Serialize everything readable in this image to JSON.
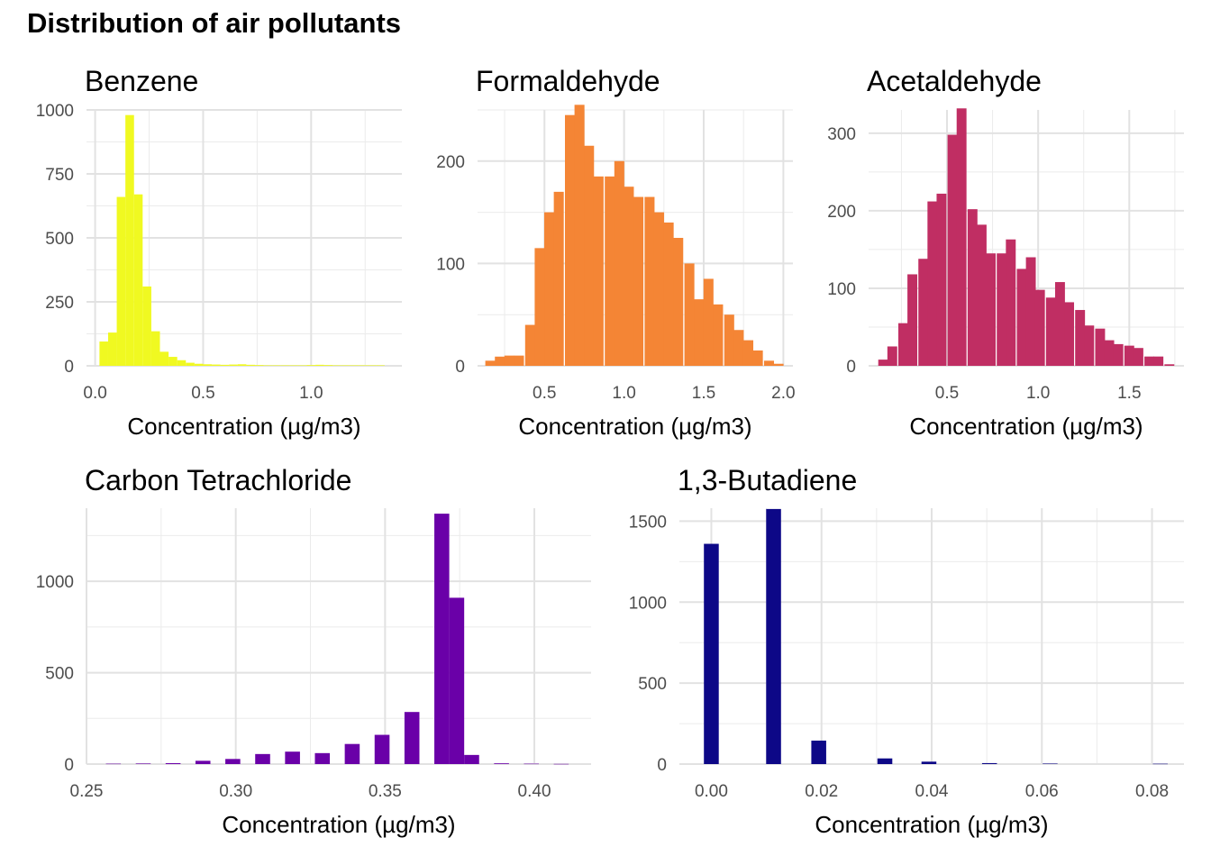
{
  "figure": {
    "title": "Distribution of air pollutants"
  },
  "chart_data": [
    {
      "type": "bar",
      "title": "Benzene",
      "xlabel": "Concentration (µg/m3)",
      "ylabel": "",
      "color": "#F0F921",
      "xlim": [
        -0.04,
        1.42
      ],
      "ylim": [
        0,
        1000
      ],
      "xticks": [
        0.0,
        0.5,
        1.0
      ],
      "xtick_labels": [
        "0.0",
        "0.5",
        "1.0"
      ],
      "yticks": [
        0,
        250,
        500,
        750,
        1000
      ],
      "yticks_minor": [
        125,
        375,
        625,
        875
      ],
      "xticks_minor": [
        0.25,
        0.75,
        1.25
      ],
      "bin_width": 0.04,
      "x": [
        0.04,
        0.08,
        0.12,
        0.16,
        0.2,
        0.24,
        0.28,
        0.32,
        0.36,
        0.4,
        0.44,
        0.48,
        0.52,
        0.56,
        0.6,
        0.64,
        0.68,
        0.72,
        0.76,
        0.8,
        0.84,
        0.88,
        0.92,
        0.96,
        1.0,
        1.04,
        1.08,
        1.12,
        1.16,
        1.2,
        1.24,
        1.28,
        1.32
      ],
      "values": [
        95,
        130,
        660,
        980,
        670,
        310,
        135,
        55,
        35,
        22,
        12,
        8,
        6,
        5,
        4,
        5,
        6,
        4,
        3,
        2,
        2,
        2,
        2,
        2,
        3,
        4,
        3,
        2,
        2,
        2,
        2,
        2,
        2
      ]
    },
    {
      "type": "bar",
      "title": "Formaldehyde",
      "xlabel": "Concentration (µg/m3)",
      "ylabel": "",
      "color": "#F48535",
      "xlim": [
        0.08,
        2.06
      ],
      "ylim": [
        0,
        250
      ],
      "xticks": [
        0.5,
        1.0,
        1.5,
        2.0
      ],
      "xtick_labels": [
        "0.5",
        "1.0",
        "1.5",
        "2.0"
      ],
      "yticks": [
        0,
        100,
        200
      ],
      "yticks_minor": [
        50,
        150,
        250
      ],
      "xticks_minor": [
        0.25,
        0.75,
        1.25,
        1.75
      ],
      "bin_width": 0.0625,
      "x": [
        0.16,
        0.22,
        0.28,
        0.34,
        0.41,
        0.47,
        0.53,
        0.59,
        0.66,
        0.72,
        0.78,
        0.84,
        0.91,
        0.97,
        1.03,
        1.09,
        1.16,
        1.22,
        1.28,
        1.34,
        1.41,
        1.47,
        1.53,
        1.59,
        1.66,
        1.72,
        1.78,
        1.84,
        1.91,
        1.97
      ],
      "values": [
        5,
        9,
        10,
        10,
        40,
        115,
        150,
        170,
        245,
        255,
        215,
        185,
        185,
        200,
        175,
        165,
        165,
        150,
        140,
        125,
        100,
        65,
        85,
        60,
        50,
        35,
        25,
        15,
        5,
        2
      ]
    },
    {
      "type": "bar",
      "title": "Acetaldehyde",
      "xlabel": "Concentration (µg/m3)",
      "ylabel": "",
      "color": "#C02E63",
      "xlim": [
        0.07,
        1.8
      ],
      "ylim": [
        0,
        330
      ],
      "xticks": [
        0.5,
        1.0,
        1.5
      ],
      "xtick_labels": [
        "0.5",
        "1.0",
        "1.5"
      ],
      "yticks": [
        0,
        100,
        200,
        300
      ],
      "yticks_minor": [
        50,
        150,
        250
      ],
      "xticks_minor": [
        0.25,
        0.75,
        1.25,
        1.75
      ],
      "bin_width": 0.054,
      "x": [
        0.15,
        0.2,
        0.26,
        0.31,
        0.37,
        0.42,
        0.47,
        0.53,
        0.58,
        0.64,
        0.69,
        0.74,
        0.8,
        0.85,
        0.91,
        0.96,
        1.01,
        1.07,
        1.12,
        1.17,
        1.23,
        1.28,
        1.34,
        1.39,
        1.44,
        1.5,
        1.55,
        1.61,
        1.66,
        1.72
      ],
      "values": [
        8,
        25,
        55,
        118,
        138,
        212,
        222,
        298,
        332,
        202,
        182,
        145,
        145,
        163,
        125,
        140,
        98,
        88,
        108,
        82,
        72,
        52,
        48,
        33,
        28,
        26,
        23,
        12,
        12,
        2
      ]
    },
    {
      "type": "bar",
      "title": "Carbon Tetrachloride",
      "xlabel": "Concentration (µg/m3)",
      "ylabel": "",
      "color": "#6A00A8",
      "xlim": [
        0.25,
        0.419
      ],
      "ylim": [
        0,
        1400
      ],
      "xticks": [
        0.25,
        0.3,
        0.35,
        0.4
      ],
      "xtick_labels": [
        "0.25",
        "0.30",
        "0.35",
        "0.40"
      ],
      "yticks": [
        0,
        500,
        1000
      ],
      "yticks_minor": [
        250,
        750,
        1250
      ],
      "xticks_minor": [
        0.275,
        0.325,
        0.375
      ],
      "bin_width": 0.005,
      "x": [
        0.259,
        0.269,
        0.279,
        0.289,
        0.299,
        0.309,
        0.319,
        0.329,
        0.339,
        0.349,
        0.359,
        0.369,
        0.374,
        0.379,
        0.389,
        0.399,
        0.409
      ],
      "values": [
        2,
        3,
        5,
        18,
        28,
        55,
        68,
        60,
        110,
        160,
        285,
        1370,
        910,
        50,
        4,
        2,
        1
      ]
    },
    {
      "type": "bar",
      "title": "1,3-Butadiene",
      "xlabel": "Concentration (µg/m3)",
      "ylabel": "",
      "color": "#0D0887",
      "xlim": [
        -0.0058,
        0.0858
      ],
      "ylim": [
        0,
        1580
      ],
      "xticks": [
        0.0,
        0.02,
        0.04,
        0.06,
        0.08
      ],
      "xtick_labels": [
        "0.00",
        "0.02",
        "0.04",
        "0.06",
        "0.08"
      ],
      "yticks": [
        0,
        500,
        1000,
        1500
      ],
      "yticks_minor": [
        250,
        750,
        1250
      ],
      "xticks_minor": [
        0.01,
        0.03,
        0.05,
        0.07
      ],
      "bin_width": 0.0027,
      "x": [
        0.0,
        0.0113,
        0.0195,
        0.0315,
        0.0395,
        0.0505,
        0.0615,
        0.0815
      ],
      "values": [
        1360,
        1575,
        145,
        35,
        15,
        6,
        3,
        2
      ]
    }
  ]
}
